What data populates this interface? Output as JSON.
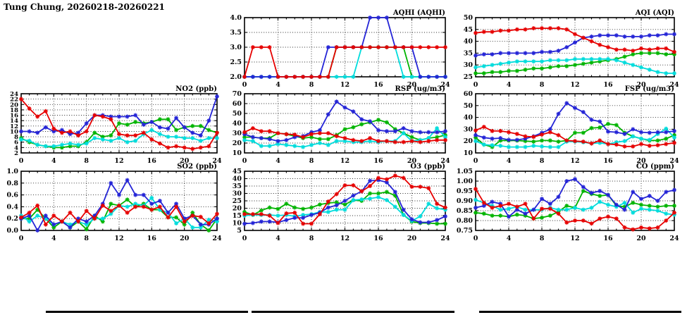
{
  "page_title": "Tung Chung, 20260218-20260221",
  "colors": {
    "red": "#e60000",
    "blue": "#2424d6",
    "green": "#00b400",
    "cyan": "#00dcdc"
  },
  "chart_data": [
    {
      "id": "aqhi",
      "title": "AQHI (AQHI)",
      "type": "line",
      "xlim": [
        0,
        24
      ],
      "xticks": [
        0,
        4,
        8,
        12,
        16,
        20,
        24
      ],
      "ylim": [
        2.0,
        4.0
      ],
      "ytick_step": 0.5,
      "ydecimals": 1,
      "position": {
        "col": 2,
        "row": 1
      },
      "series": [
        {
          "name": "red",
          "values": [
            2,
            3,
            3,
            3,
            2,
            2,
            2,
            2,
            2,
            2,
            2,
            3,
            3,
            3,
            3,
            3,
            3,
            3,
            3,
            3,
            3,
            3,
            3,
            3,
            3
          ]
        },
        {
          "name": "blue",
          "values": [
            2,
            2,
            2,
            2,
            2,
            2,
            2,
            2,
            2,
            2,
            3,
            3,
            3,
            3,
            3,
            4,
            4,
            4,
            3,
            3,
            3,
            2,
            2,
            2,
            2
          ]
        },
        {
          "name": "green",
          "values": [
            2,
            2,
            2,
            2,
            2,
            2,
            2,
            2,
            2,
            2,
            2,
            3,
            3,
            3,
            3,
            3,
            3,
            3,
            3,
            3,
            2,
            2,
            2,
            2,
            2
          ]
        },
        {
          "name": "cyan",
          "values": [
            2,
            2,
            2,
            2,
            2,
            2,
            2,
            2,
            2,
            2,
            2,
            2,
            2,
            2,
            3,
            3,
            3,
            3,
            3,
            2,
            2,
            2,
            2,
            2,
            2
          ]
        }
      ]
    },
    {
      "id": "aqi",
      "title": "AQI (AQI)",
      "type": "line",
      "xlim": [
        0,
        24
      ],
      "xticks": [
        0,
        4,
        8,
        12,
        16,
        20,
        24
      ],
      "ylim": [
        25,
        50
      ],
      "ytick_step": 5,
      "ydecimals": 0,
      "position": {
        "col": 3,
        "row": 1
      },
      "series": [
        {
          "name": "red",
          "values": [
            43.5,
            44,
            44,
            44.5,
            44.5,
            45,
            45,
            45.5,
            45.5,
            45.5,
            45.5,
            45,
            43,
            41.5,
            40,
            38.5,
            37.5,
            36.5,
            36.5,
            36,
            37,
            36.5,
            37,
            37,
            35.5
          ]
        },
        {
          "name": "blue",
          "values": [
            34,
            34.5,
            34.5,
            35,
            35,
            35,
            35,
            35,
            35.5,
            35.5,
            36,
            37.5,
            39.5,
            41.5,
            42,
            42.5,
            42.5,
            42.5,
            42,
            42,
            42,
            42.5,
            42.5,
            43,
            43
          ]
        },
        {
          "name": "green",
          "values": [
            26.5,
            26.5,
            27,
            27,
            27.5,
            27.5,
            28,
            28.5,
            28.5,
            29,
            29.5,
            29.5,
            30,
            30.5,
            31,
            31.5,
            32,
            32.5,
            33.5,
            34.5,
            35,
            35,
            35,
            34.5,
            34.5
          ]
        },
        {
          "name": "cyan",
          "values": [
            29,
            29.5,
            30,
            30.5,
            31,
            31.5,
            31.5,
            31.5,
            31.5,
            32,
            32,
            32,
            32.5,
            32.5,
            32.5,
            32.5,
            32.5,
            32,
            31,
            30,
            29,
            28,
            27,
            26.5,
            26.5
          ]
        }
      ]
    },
    {
      "id": "no2",
      "title": "NO2 (ppb)",
      "type": "line",
      "xlim": [
        0,
        24
      ],
      "xticks": [
        0,
        4,
        8,
        12,
        16,
        20,
        24
      ],
      "ylim": [
        2,
        24
      ],
      "ytick_step": 2,
      "ydecimals": 0,
      "position": {
        "col": 1,
        "row": 2
      },
      "series": [
        {
          "name": "red",
          "values": [
            22,
            18.5,
            15.5,
            17.5,
            11,
            9.5,
            10,
            8.5,
            10,
            16,
            15.5,
            14.5,
            9,
            8.5,
            8.5,
            9.5,
            7,
            5.5,
            4,
            4.5,
            4,
            3.5,
            4,
            4.5,
            9.5
          ]
        },
        {
          "name": "blue",
          "values": [
            10,
            10,
            9.5,
            11.5,
            10,
            10.5,
            9,
            9.5,
            13,
            16,
            16,
            15.5,
            15.5,
            15.5,
            16,
            12.5,
            13.5,
            11.5,
            11,
            15,
            11.5,
            9.5,
            8.5,
            14,
            23
          ]
        },
        {
          "name": "green",
          "values": [
            7.5,
            6,
            5,
            4.5,
            4,
            4,
            4.5,
            4.5,
            6,
            9.5,
            8,
            8.5,
            13,
            12.5,
            13.5,
            13,
            13.5,
            14.5,
            14.5,
            10.5,
            11.5,
            12,
            12,
            10.5,
            9.5
          ]
        },
        {
          "name": "cyan",
          "values": [
            7,
            6.5,
            5,
            4.5,
            4.5,
            5,
            5.5,
            5,
            5.5,
            7.5,
            7,
            6.5,
            7.5,
            6,
            6.5,
            9,
            10.5,
            9,
            8,
            8,
            7.5,
            7.5,
            6.5,
            7.5,
            7.5
          ]
        }
      ]
    },
    {
      "id": "rsp",
      "title": "RSP (ug/m3)",
      "type": "line",
      "xlim": [
        0,
        24
      ],
      "xticks": [
        0,
        4,
        8,
        12,
        16,
        20,
        24
      ],
      "ylim": [
        10,
        70
      ],
      "ytick_step": 10,
      "ydecimals": 0,
      "position": {
        "col": 2,
        "row": 2
      },
      "series": [
        {
          "name": "red",
          "values": [
            31,
            35,
            32,
            32,
            30,
            29,
            28.5,
            26,
            29,
            30,
            30,
            27,
            25,
            23,
            22,
            25,
            22,
            22,
            21,
            21,
            22,
            21,
            22,
            23,
            23
          ]
        },
        {
          "name": "blue",
          "values": [
            29,
            26,
            25,
            24,
            22,
            23,
            26,
            27,
            31,
            33,
            49,
            62,
            56,
            52,
            44,
            42,
            33,
            32,
            32,
            35,
            32,
            31,
            31,
            31,
            32
          ]
        },
        {
          "name": "green",
          "values": [
            26,
            26,
            25,
            25,
            30,
            29,
            27,
            25,
            26,
            24,
            24,
            28,
            34,
            36,
            39,
            41,
            43.5,
            41,
            34,
            30,
            26,
            23,
            25,
            26,
            28
          ]
        },
        {
          "name": "cyan",
          "values": [
            23,
            22,
            17,
            17,
            19,
            18,
            17,
            16,
            18,
            20,
            18,
            22,
            22,
            21,
            21,
            22,
            21,
            22,
            22,
            30,
            22,
            23,
            25,
            35,
            26
          ]
        }
      ]
    },
    {
      "id": "fsp",
      "title": "FSP (ug/m3)",
      "type": "line",
      "xlim": [
        0,
        24
      ],
      "xticks": [
        0,
        4,
        8,
        12,
        16,
        20,
        24
      ],
      "ylim": [
        10,
        60
      ],
      "ytick_step": 10,
      "ydecimals": 0,
      "position": {
        "col": 3,
        "row": 2
      },
      "series": [
        {
          "name": "red",
          "values": [
            29,
            32,
            28.5,
            28.5,
            27.5,
            26,
            24,
            23.5,
            25.5,
            27.5,
            25,
            20.5,
            20,
            19.5,
            18,
            20.5,
            17.5,
            17,
            15.5,
            15.5,
            17.5,
            16,
            16.5,
            17.5,
            18.5
          ]
        },
        {
          "name": "blue",
          "values": [
            25,
            23,
            22,
            22.5,
            21,
            21,
            22,
            24,
            27,
            30,
            43,
            52,
            48,
            44.5,
            38,
            36.5,
            28,
            27.5,
            26,
            30,
            27.5,
            27,
            27.5,
            27.5,
            28.5
          ]
        },
        {
          "name": "green",
          "values": [
            23,
            17,
            15,
            20.5,
            20.5,
            20.5,
            20,
            19.5,
            20.5,
            20.5,
            19.5,
            20.5,
            27,
            27,
            31,
            31.5,
            34.5,
            33.5,
            27,
            24,
            22,
            20.5,
            20.5,
            22,
            25
          ]
        },
        {
          "name": "cyan",
          "values": [
            20,
            17,
            16.5,
            16,
            15,
            15,
            15,
            16,
            15.5,
            15,
            15,
            19.5,
            19.5,
            19,
            18,
            18.5,
            17.5,
            19,
            20,
            24,
            22,
            21,
            26,
            30.5,
            23
          ]
        }
      ]
    },
    {
      "id": "so2",
      "title": "SO2 (ppb)",
      "type": "line",
      "xlim": [
        0,
        24
      ],
      "xticks": [
        0,
        4,
        8,
        12,
        16,
        20,
        24
      ],
      "ylim": [
        0.0,
        1.0
      ],
      "ytick_step": 0.2,
      "ydecimals": 1,
      "position": {
        "col": 1,
        "row": 3
      },
      "series": [
        {
          "name": "red",
          "values": [
            0.22,
            0.3,
            0.42,
            0.1,
            0.25,
            0.15,
            0.3,
            0.15,
            0.33,
            0.2,
            0.42,
            0.33,
            0.42,
            0.3,
            0.4,
            0.4,
            0.35,
            0.4,
            0.22,
            0.4,
            0.15,
            0.25,
            0.23,
            0.12,
            0.28
          ]
        },
        {
          "name": "blue",
          "values": [
            0.2,
            0.25,
            0.0,
            0.25,
            0.1,
            0.15,
            0.05,
            0.2,
            0.15,
            0.25,
            0.45,
            0.8,
            0.6,
            0.85,
            0.6,
            0.6,
            0.45,
            0.5,
            0.3,
            0.45,
            0.2,
            0.25,
            0.1,
            0.1,
            0.2
          ]
        },
        {
          "name": "green",
          "values": [
            0.2,
            0.2,
            0.35,
            0.2,
            0.05,
            0.15,
            0.05,
            0.15,
            0.02,
            0.25,
            0.15,
            0.45,
            0.42,
            0.52,
            0.4,
            0.45,
            0.35,
            0.35,
            0.22,
            0.22,
            0.1,
            0.3,
            0.1,
            0.0,
            0.2
          ]
        },
        {
          "name": "cyan",
          "values": [
            0.25,
            0.15,
            0.25,
            0.2,
            0.1,
            0.15,
            0.1,
            0.15,
            0.1,
            0.2,
            0.2,
            0.28,
            0.42,
            0.4,
            0.45,
            0.42,
            0.55,
            0.35,
            0.3,
            0.12,
            0.2,
            0.05,
            0.05,
            0.18,
            0.15
          ]
        }
      ]
    },
    {
      "id": "o3",
      "title": "O3 (ppb)",
      "type": "line",
      "xlim": [
        0,
        24
      ],
      "xticks": [
        0,
        4,
        8,
        12,
        16,
        20,
        24
      ],
      "ylim": [
        5,
        45
      ],
      "ytick_step": 5,
      "ydecimals": 0,
      "position": {
        "col": 2,
        "row": 3
      },
      "series": [
        {
          "name": "red",
          "values": [
            16,
            16,
            16,
            15,
            10,
            16.5,
            17,
            9.5,
            9.5,
            16,
            24.5,
            29.5,
            35.5,
            35.5,
            31.5,
            35,
            40.5,
            39.5,
            42,
            40.5,
            34.5,
            34.5,
            33.5,
            23,
            20.5
          ]
        },
        {
          "name": "blue",
          "values": [
            9.5,
            10,
            11,
            11,
            10.5,
            12,
            13.5,
            13.5,
            15.5,
            17,
            20.5,
            22,
            25,
            28.5,
            31.5,
            38.5,
            39,
            37.5,
            31,
            19,
            12.5,
            10.5,
            10.5,
            12,
            14.5
          ]
        },
        {
          "name": "green",
          "values": [
            17.5,
            15.5,
            18.5,
            20.5,
            19.5,
            23,
            20.5,
            19.5,
            20.5,
            22.5,
            23.5,
            24,
            22.5,
            25.5,
            25,
            30,
            30,
            31,
            28.5,
            15.5,
            11,
            10,
            10,
            9.5,
            9.5
          ]
        },
        {
          "name": "cyan",
          "values": [
            15,
            15.5,
            15.5,
            15.5,
            15,
            15.5,
            14.5,
            15.5,
            16,
            17.5,
            17.5,
            19,
            19,
            25.5,
            26,
            26.5,
            27.5,
            25.5,
            21,
            15.5,
            11.5,
            14.5,
            23,
            20,
            19
          ]
        }
      ]
    },
    {
      "id": "co",
      "title": "CO (ppm)",
      "type": "line",
      "xlim": [
        0,
        24
      ],
      "xticks": [
        0,
        4,
        8,
        12,
        16,
        20,
        24
      ],
      "ylim": [
        0.75,
        1.05
      ],
      "ytick_step": 0.05,
      "ydecimals": 2,
      "position": {
        "col": 3,
        "row": 3
      },
      "series": [
        {
          "name": "red",
          "values": [
            0.96,
            0.89,
            0.865,
            0.875,
            0.885,
            0.87,
            0.885,
            0.81,
            0.86,
            0.86,
            0.835,
            0.79,
            0.8,
            0.8,
            0.785,
            0.81,
            0.82,
            0.81,
            0.765,
            0.755,
            0.765,
            0.76,
            0.765,
            0.8,
            0.84
          ]
        },
        {
          "name": "blue",
          "values": [
            0.865,
            0.875,
            0.895,
            0.885,
            0.82,
            0.855,
            0.835,
            0.855,
            0.91,
            0.885,
            0.92,
            1.0,
            1.01,
            0.97,
            0.94,
            0.95,
            0.93,
            0.88,
            0.855,
            0.945,
            0.91,
            0.925,
            0.9,
            0.945,
            0.955
          ]
        },
        {
          "name": "green",
          "values": [
            0.84,
            0.835,
            0.825,
            0.825,
            0.82,
            0.83,
            0.825,
            0.81,
            0.815,
            0.825,
            0.845,
            0.875,
            0.865,
            0.95,
            0.935,
            0.925,
            0.93,
            0.875,
            0.87,
            0.89,
            0.88,
            0.875,
            0.87,
            0.875,
            0.875
          ]
        },
        {
          "name": "cyan",
          "values": [
            0.905,
            0.89,
            0.875,
            0.855,
            0.86,
            0.87,
            0.855,
            0.855,
            0.855,
            0.865,
            0.855,
            0.855,
            0.865,
            0.855,
            0.865,
            0.895,
            0.88,
            0.87,
            0.89,
            0.84,
            0.86,
            0.855,
            0.85,
            0.835,
            0.83
          ]
        }
      ]
    }
  ]
}
